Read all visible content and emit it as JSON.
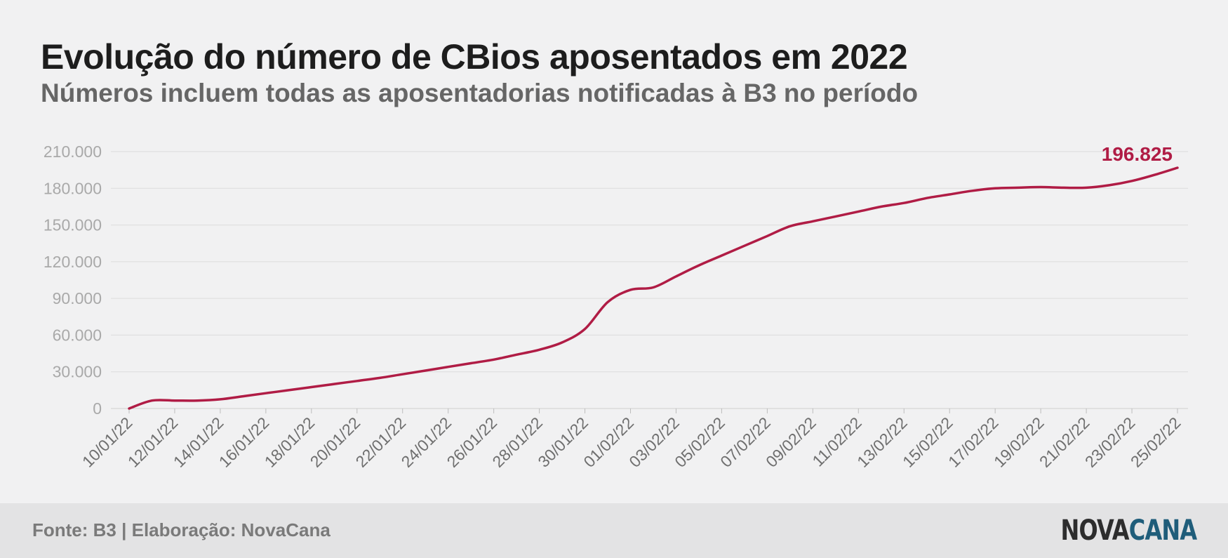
{
  "header": {
    "title": "Evolução do número de CBios aposentados em 2022",
    "subtitle": "Números incluem todas as aposentadorias notificadas à B3 no período"
  },
  "footer": {
    "source": "Fonte: B3 | Elaboração: NovaCana",
    "logo_part1": "NOVA",
    "logo_part2": "CANA"
  },
  "colors": {
    "line": "#b01c45",
    "grid": "#dcdcdc",
    "tick_label": "#a9a9a9",
    "title": "#1d1d1d",
    "subtitle": "#666666"
  },
  "chart_data": {
    "type": "line",
    "title": "Evolução do número de CBios aposentados em 2022",
    "subtitle": "Números incluem todas as aposentadorias notificadas à B3 no período",
    "xlabel": "",
    "ylabel": "",
    "ylim": [
      0,
      210000
    ],
    "yticks": [
      0,
      30000,
      60000,
      90000,
      120000,
      150000,
      180000,
      210000
    ],
    "ytick_labels": [
      "0",
      "30.000",
      "60.000",
      "90.000",
      "120.000",
      "150.000",
      "180.000",
      "210.000"
    ],
    "xtick_labels": [
      "10/01/22",
      "12/01/22",
      "14/01/22",
      "16/01/22",
      "18/01/22",
      "20/01/22",
      "22/01/22",
      "24/01/22",
      "26/01/22",
      "28/01/22",
      "30/01/22",
      "01/02/22",
      "03/02/22",
      "05/02/22",
      "07/02/22",
      "09/02/22",
      "11/02/22",
      "13/02/22",
      "15/02/22",
      "17/02/22",
      "19/02/22",
      "21/02/22",
      "23/02/22",
      "25/02/22"
    ],
    "grid": true,
    "end_label": "196.825",
    "series": [
      {
        "x": [
          "10/01/22",
          "11/01/22",
          "12/01/22",
          "13/01/22",
          "14/01/22",
          "15/01/22",
          "16/01/22",
          "17/01/22",
          "18/01/22",
          "19/01/22",
          "20/01/22",
          "21/01/22",
          "22/01/22",
          "23/01/22",
          "24/01/22",
          "25/01/22",
          "26/01/22",
          "27/01/22",
          "28/01/22",
          "29/01/22",
          "30/01/22",
          "31/01/22",
          "01/02/22",
          "02/02/22",
          "03/02/22",
          "04/02/22",
          "05/02/22",
          "06/02/22",
          "07/02/22",
          "08/02/22",
          "09/02/22",
          "10/02/22",
          "11/02/22",
          "12/02/22",
          "13/02/22",
          "14/02/22",
          "15/02/22",
          "16/02/22",
          "17/02/22",
          "18/02/22",
          "19/02/22",
          "20/02/22",
          "21/02/22",
          "22/02/22",
          "23/02/22",
          "24/02/22",
          "25/02/22"
        ],
        "values": [
          0,
          6500,
          6500,
          6500,
          7500,
          10000,
          12500,
          15000,
          17500,
          20000,
          22500,
          25000,
          28000,
          31000,
          34000,
          37000,
          40000,
          44000,
          48000,
          54000,
          65000,
          87000,
          97000,
          99000,
          108000,
          117000,
          125000,
          133000,
          141000,
          149000,
          153000,
          157000,
          161000,
          165000,
          168000,
          172000,
          175000,
          178000,
          180000,
          180500,
          181000,
          180500,
          180500,
          182500,
          186000,
          191000,
          196825
        ]
      }
    ]
  }
}
